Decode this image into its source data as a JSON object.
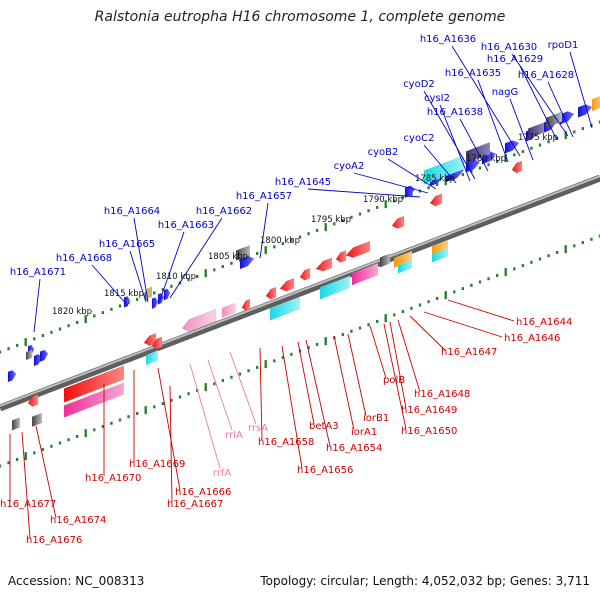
{
  "title": "Ralstonia eutropha H16 chromosome 1, complete genome",
  "footer": {
    "accession": "Accession: NC_008313",
    "summary": "Topology: circular; Length: 4,052,032 bp; Genes: 3,711"
  },
  "colors": {
    "forward_label": "#0000cc",
    "reverse_label": "#cc0000",
    "rna_label": "#e87aa8",
    "tick": "#2e7d32",
    "backbone": "#8a8a8a",
    "forward_gene": "#1010e0",
    "reverse_gene": "#ee1111",
    "cyan": "#19d8e6",
    "pink": "#ee2f97",
    "orange": "#f59a0c",
    "purple": "#4a3b7a",
    "grey": "#555555"
  },
  "kbp_labels": [
    {
      "text": "1775 kbp",
      "kbp": 1775
    },
    {
      "text": "1780 kbp",
      "kbp": 1780
    },
    {
      "text": "1785 kbp",
      "kbp": 1785
    },
    {
      "text": "1790 kbp",
      "kbp": 1790
    },
    {
      "text": "1795 kbp",
      "kbp": 1795
    },
    {
      "text": "1800 kbp",
      "kbp": 1800
    },
    {
      "text": "1805 kbp",
      "kbp": 1805
    },
    {
      "text": "1810 kbp",
      "kbp": 1810
    },
    {
      "text": "1815 kbp",
      "kbp": 1815
    },
    {
      "text": "1820 kbp",
      "kbp": 1820
    }
  ],
  "forward_labels": [
    "h16_A1636",
    "h16_A1630",
    "rpoD1",
    "h16_A1629",
    "h16_A1635",
    "h16_A1628",
    "cyoD2",
    "nagG",
    "cysI2",
    "h16_A1638",
    "cyoC2",
    "cyoB2",
    "cyoA2",
    "h16_A1645",
    "h16_A1657",
    "h16_A1664",
    "h16_A1662",
    "h16_A1663",
    "h16_A1665",
    "h16_A1668",
    "h16_A1671"
  ],
  "reverse_labels": [
    "h16_A1644",
    "h16_A1646",
    "h16_A1647",
    "polB",
    "h16_A1648",
    "h16_A1649",
    "iorB1",
    "h16_A1650",
    "iorA1",
    "betA3",
    "h16_A1654",
    "h16_A1658",
    "h16_A1656",
    "h16_A1669",
    "h16_A1670",
    "h16_A1666",
    "h16_A1667",
    "h16_A1677",
    "h16_A1674",
    "h16_A1676"
  ],
  "rna_labels": [
    "rrsA",
    "rrlA",
    "rrfA"
  ]
}
